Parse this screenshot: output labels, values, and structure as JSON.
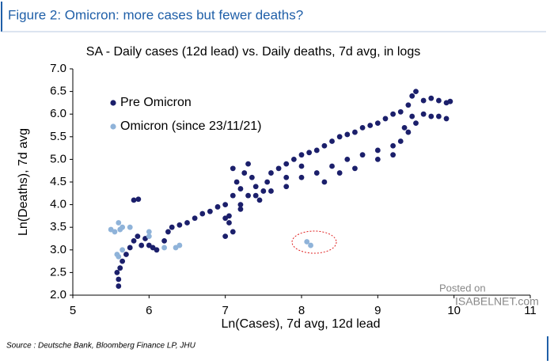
{
  "chart_data": {
    "type": "scatter",
    "title": "Figure 2: Omicron: more cases but fewer deaths?",
    "subtitle": "SA - Daily cases (12d lead) vs. Daily deaths, 7d avg, in logs",
    "x_label": "Ln(Cases), 7d avg, 12d lead",
    "y_label": "Ln(Deaths), 7d avg",
    "source": "Source : Deutsche Bank, Bloomberg Finance LP, JHU",
    "watermark": [
      "Posted on",
      "ISABELNET.com"
    ],
    "xlim": [
      5,
      11
    ],
    "xticks": [
      5,
      6,
      7,
      8,
      9,
      10,
      11
    ],
    "ylim": [
      2,
      7
    ],
    "yticks": [
      {
        "value": 2,
        "label": "2.0"
      },
      2.5,
      {
        "value": 3,
        "label": "3.0"
      },
      3.5,
      {
        "value": 4,
        "label": "4.0"
      },
      4.5,
      {
        "value": 5,
        "label": "5.0"
      },
      5.5,
      {
        "value": 6,
        "label": "6.0"
      },
      6.5,
      {
        "value": 7,
        "label": "7.0"
      }
    ],
    "grid": false,
    "series": [
      {
        "name": "Pre Omicron",
        "color": "#1b1f6b",
        "x": [
          5.6,
          5.6,
          5.58,
          5.62,
          5.65,
          5.7,
          5.75,
          5.8,
          5.85,
          5.9,
          5.95,
          6.0,
          6.05,
          6.1,
          6.2,
          6.25,
          5.8,
          5.86,
          6.3,
          6.4,
          6.5,
          6.6,
          6.7,
          6.8,
          6.9,
          7.0,
          7.05,
          7.05,
          7.1,
          7.1,
          7.15,
          7.2,
          7.2,
          7.25,
          7.3,
          7.35,
          7.4,
          7.45,
          7.5,
          7.55,
          7.6,
          7.7,
          7.8,
          7.9,
          8.0,
          8.1,
          8.2,
          8.3,
          8.4,
          8.5,
          8.6,
          8.7,
          8.8,
          8.9,
          9.0,
          9.1,
          9.2,
          9.3,
          9.4,
          9.45,
          9.5,
          9.6,
          9.7,
          9.8,
          9.9,
          9.95,
          9.9,
          9.8,
          9.7,
          9.6,
          9.5,
          9.4,
          9.3,
          9.2,
          9.0,
          8.8,
          8.6,
          8.4,
          8.2,
          8.0,
          7.8,
          7.6,
          7.4,
          7.2,
          7.0,
          8.3,
          8.5,
          8.7,
          9.0,
          9.2,
          7.8,
          8.0,
          9.35,
          9.45,
          7.3,
          7.1,
          7.0
        ],
        "values": [
          2.2,
          2.35,
          2.5,
          2.6,
          2.75,
          2.9,
          3.05,
          3.2,
          3.3,
          3.1,
          3.25,
          3.1,
          3.05,
          3.0,
          3.2,
          3.4,
          4.1,
          4.12,
          3.5,
          3.55,
          3.6,
          3.7,
          3.8,
          3.85,
          3.95,
          4.0,
          3.6,
          3.75,
          4.2,
          4.8,
          4.5,
          3.9,
          4.35,
          4.7,
          4.2,
          4.6,
          4.4,
          4.1,
          4.3,
          4.5,
          4.7,
          4.8,
          4.9,
          5.0,
          5.1,
          5.15,
          5.2,
          5.3,
          5.4,
          5.5,
          5.55,
          5.6,
          5.7,
          5.75,
          5.8,
          5.9,
          6.0,
          6.05,
          6.2,
          6.4,
          6.5,
          6.3,
          6.35,
          6.3,
          6.25,
          6.28,
          5.9,
          5.95,
          5.95,
          6.0,
          5.8,
          5.6,
          5.4,
          5.3,
          5.2,
          5.1,
          5.0,
          4.85,
          4.7,
          4.6,
          4.4,
          4.3,
          4.2,
          4.0,
          3.7,
          4.5,
          4.7,
          4.8,
          5.0,
          5.1,
          4.6,
          4.85,
          5.7,
          5.95,
          4.9,
          3.4,
          3.3
        ]
      },
      {
        "name": "Omicron (since 23/11/21)",
        "color": "#8fb3d9",
        "x": [
          5.5,
          5.55,
          5.6,
          5.65,
          5.62,
          5.75,
          5.6,
          5.65,
          5.58,
          6.0,
          6.0,
          6.2,
          6.35,
          6.4,
          8.07,
          8.12
        ],
        "values": [
          3.45,
          3.4,
          3.6,
          3.5,
          3.45,
          3.5,
          2.85,
          3.0,
          2.9,
          3.3,
          3.4,
          3.05,
          3.05,
          3.1,
          3.18,
          3.1
        ]
      }
    ]
  }
}
